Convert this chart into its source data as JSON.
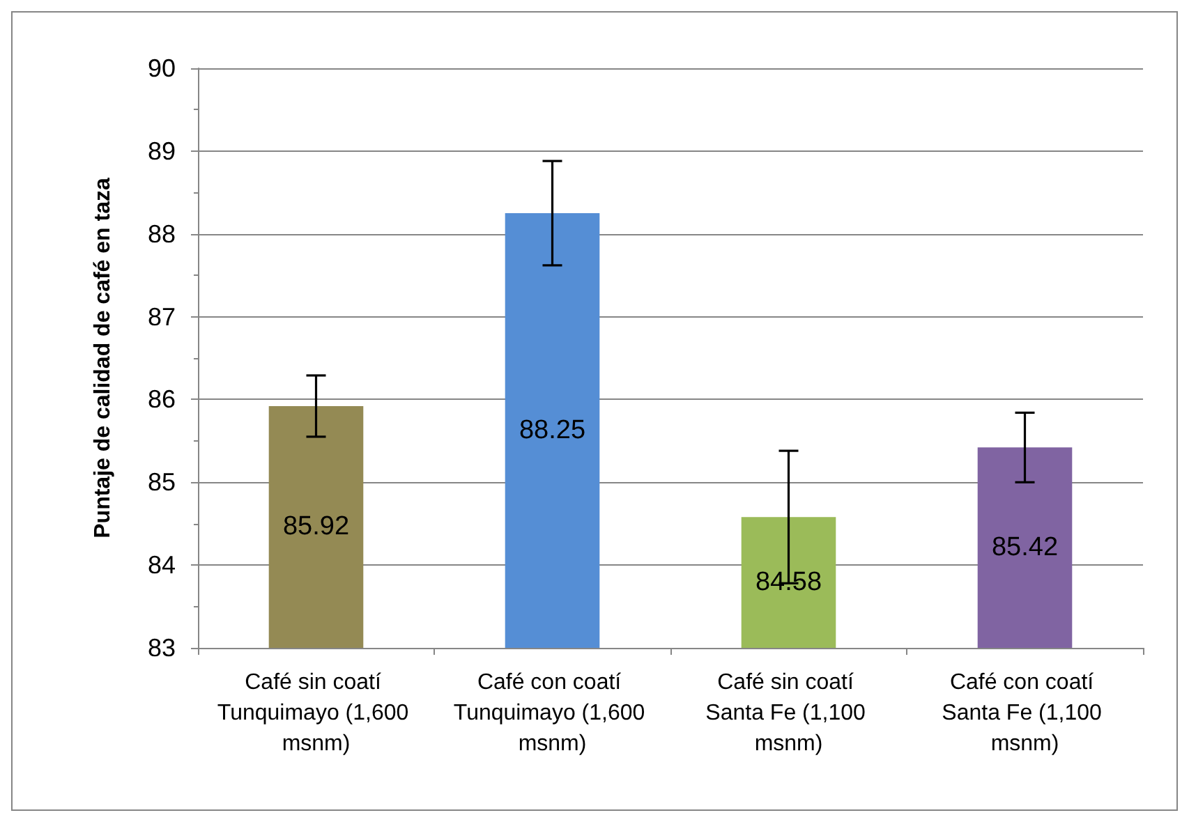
{
  "chart_data": {
    "type": "bar",
    "ylabel": "Puntaje de calidad de café en taza",
    "categories": [
      "Café sin coatí Tunquimayo (1,600 msnm)",
      "Café con coatí Tunquimayo (1,600 msnm)",
      "Café sin coatí Santa Fe (1,100 msnm)",
      "Café con coatí Santa Fe (1,100 msnm)"
    ],
    "values": [
      85.92,
      88.25,
      84.58,
      85.42
    ],
    "colors": [
      "#948a54",
      "#558ed5",
      "#9bbb59",
      "#8064a2"
    ],
    "errors": [
      0.37,
      0.63,
      0.8,
      0.42
    ],
    "data_labels": true,
    "ylim": [
      83,
      90
    ],
    "yticks": [
      83,
      84,
      85,
      86,
      87,
      88,
      89,
      90
    ],
    "grid": "y"
  }
}
